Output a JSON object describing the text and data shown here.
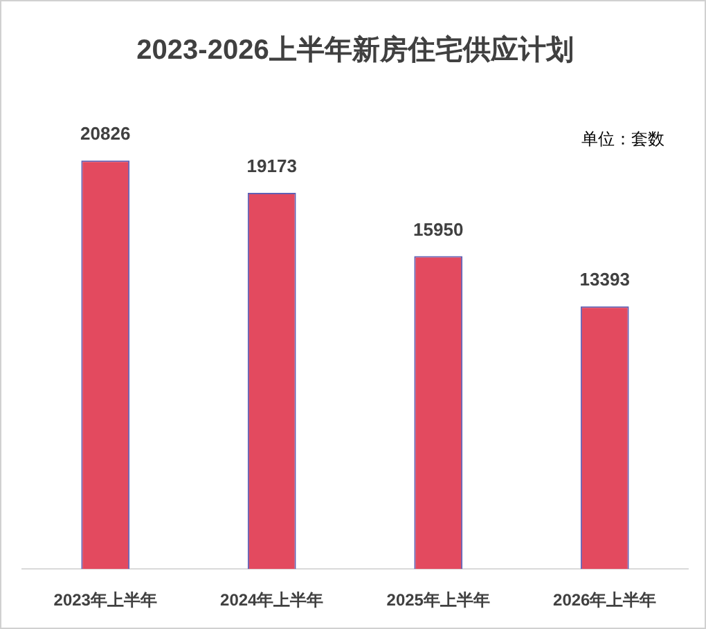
{
  "chart_data": {
    "type": "bar",
    "title": "2023-2026上半年新房住宅供应计划",
    "categories": [
      "2023年上半年",
      "2024年上半年",
      "2025年上半年",
      "2026年上半年"
    ],
    "values": [
      20826,
      19173,
      15950,
      13393
    ],
    "color": "#e34a5f",
    "data_labels": true,
    "annotations": [
      "单位：套数"
    ]
  }
}
